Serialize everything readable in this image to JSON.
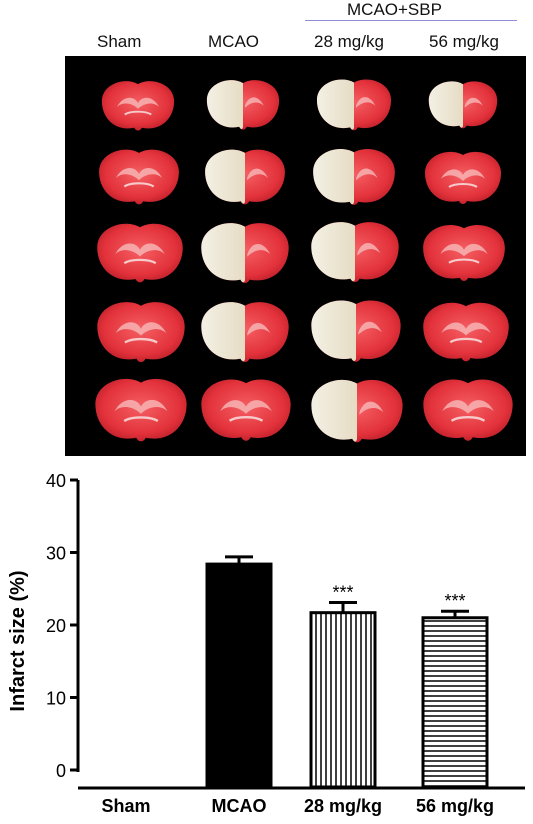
{
  "figure": {
    "group_header": "MCAO+SBP",
    "column_labels": [
      "Sham",
      "MCAO",
      "28 mg/kg",
      "56 mg/kg"
    ]
  },
  "chart_data": {
    "type": "bar",
    "categories": [
      "Sham",
      "MCAO",
      "28 mg/kg",
      "56 mg/kg"
    ],
    "values": [
      0,
      28.4,
      21.7,
      21.0
    ],
    "errors": [
      0,
      1.0,
      1.4,
      0.9
    ],
    "annotations": [
      "",
      "",
      "***",
      "***"
    ],
    "fill_patterns": [
      "none",
      "solid",
      "vertical-stripes",
      "horizontal-stripes"
    ],
    "ylabel": "Infarct size (%)",
    "xlabel": "",
    "ylim": [
      0,
      40
    ],
    "yticks": [
      0,
      10,
      20,
      30,
      40
    ],
    "grid": false,
    "colors": {
      "bar": "#000000",
      "background": "#ffffff"
    }
  }
}
